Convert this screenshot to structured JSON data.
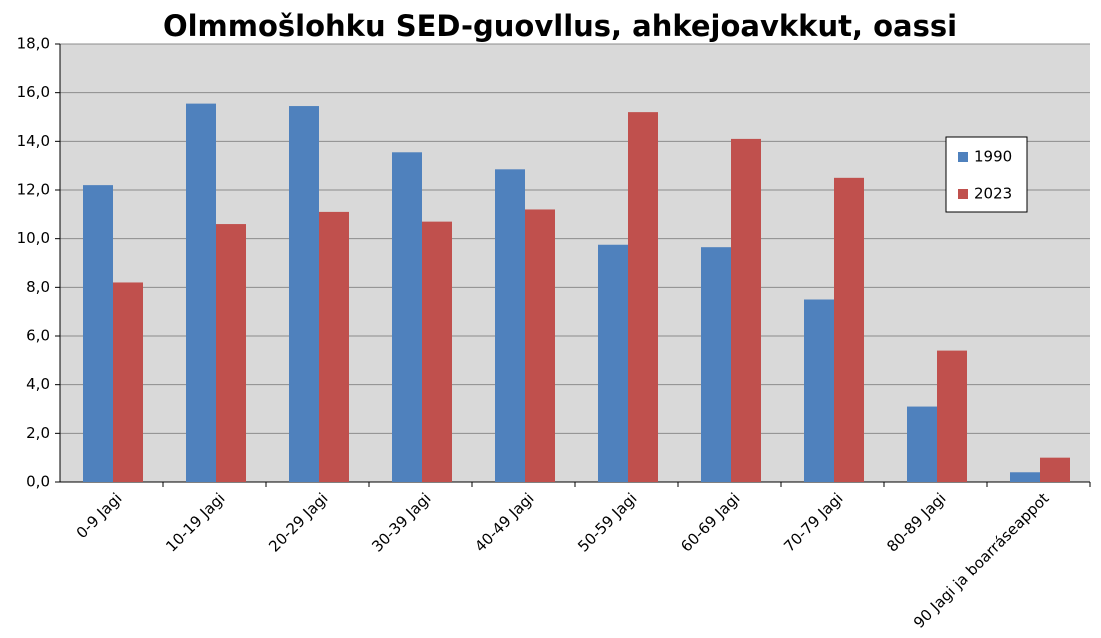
{
  "chart_data": {
    "type": "bar",
    "title": "Olmmošlohku SED-guovllus, ahkejoavkkut, oassi",
    "categories": [
      "0-9 Jagi",
      "10-19 Jagi",
      "20-29 Jagi",
      "30-39 Jagi",
      "40-49 Jagi",
      "50-59 Jagi",
      "60-69 Jagi",
      "70-79 Jagi",
      "80-89 Jagi",
      "90 Jagi ja boarráseappot"
    ],
    "series": [
      {
        "name": "1990",
        "color": "#4f81bd",
        "values": [
          12.2,
          15.55,
          15.45,
          13.55,
          12.85,
          9.75,
          9.65,
          7.5,
          3.1,
          0.4
        ]
      },
      {
        "name": "2023",
        "color": "#c0504d",
        "values": [
          8.2,
          10.6,
          11.1,
          10.7,
          11.2,
          15.2,
          14.1,
          12.5,
          5.4,
          1.0
        ]
      }
    ],
    "ylim": [
      0,
      18
    ],
    "yticks": [
      {
        "value": 0,
        "label": "0,0"
      },
      {
        "value": 2,
        "label": "2,0"
      },
      {
        "value": 4,
        "label": "4,0"
      },
      {
        "value": 6,
        "label": "6,0"
      },
      {
        "value": 8,
        "label": "8,0"
      },
      {
        "value": 10,
        "label": "10,0"
      },
      {
        "value": 12,
        "label": "12,0"
      },
      {
        "value": 14,
        "label": "14,0"
      },
      {
        "value": 16,
        "label": "16,0"
      },
      {
        "value": 18,
        "label": "18,0"
      }
    ],
    "grid": true,
    "legend": "right"
  }
}
